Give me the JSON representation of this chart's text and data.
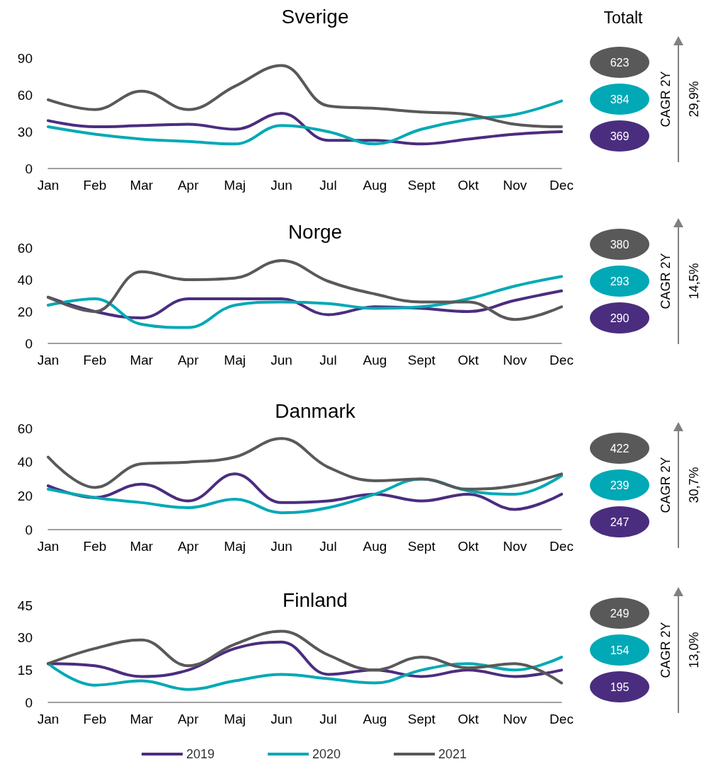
{
  "chart_data": [
    {
      "type": "line",
      "title": "Sverige",
      "categories": [
        "Jan",
        "Feb",
        "Mar",
        "Apr",
        "Maj",
        "Jun",
        "Jul",
        "Aug",
        "Sept",
        "Okt",
        "Nov",
        "Dec"
      ],
      "ylim": [
        0,
        90
      ],
      "yticks": [
        0,
        30,
        60,
        90
      ],
      "marker": "none",
      "series": [
        {
          "color": "#4b2d7f",
          "values": [
            39,
            34,
            35,
            36,
            32,
            45,
            23,
            23,
            20,
            24,
            28,
            30
          ]
        },
        {
          "color": "#00a9b5",
          "values": [
            34,
            28,
            24,
            22,
            20,
            35,
            30,
            20,
            32,
            40,
            44,
            55
          ]
        },
        {
          "color": "#595959",
          "values": [
            56,
            48,
            63,
            48,
            67,
            84,
            51,
            49,
            46,
            44,
            36,
            34
          ]
        }
      ]
    },
    {
      "type": "other",
      "title": "Totalt",
      "categories": [
        null,
        null,
        null
      ],
      "values": [
        623,
        384,
        369
      ],
      "colors": [
        "#595959",
        "#00a9b5",
        "#4b2d7f"
      ],
      "data_labels": true,
      "annotations": [
        "CAGR 2Y",
        "29,9%"
      ]
    },
    {
      "type": "line",
      "title": "Norge",
      "categories": [
        "Jan",
        "Feb",
        "Mar",
        "Apr",
        "Maj",
        "Jun",
        "Jul",
        "Aug",
        "Sept",
        "Okt",
        "Nov",
        "Dec"
      ],
      "ylim": [
        0,
        60
      ],
      "yticks": [
        0,
        20,
        40,
        60
      ],
      "marker": "none",
      "series": [
        {
          "color": "#4b2d7f",
          "values": [
            29,
            20,
            16,
            28,
            28,
            28,
            18,
            23,
            22,
            20,
            27,
            33
          ]
        },
        {
          "color": "#00a9b5",
          "values": [
            24,
            28,
            12,
            10,
            24,
            26,
            25,
            22,
            23,
            28,
            36,
            42
          ]
        },
        {
          "color": "#595959",
          "values": [
            29,
            20,
            45,
            40,
            41,
            52,
            39,
            31,
            26,
            26,
            15,
            23
          ]
        }
      ]
    },
    {
      "type": "other",
      "categories": [
        null,
        null,
        null
      ],
      "values": [
        380,
        293,
        290
      ],
      "colors": [
        "#595959",
        "#00a9b5",
        "#4b2d7f"
      ],
      "data_labels": true,
      "annotations": [
        "CAGR 2Y",
        "14,5%"
      ]
    },
    {
      "type": "line",
      "title": "Danmark",
      "categories": [
        "Jan",
        "Feb",
        "Mar",
        "Apr",
        "Maj",
        "Jun",
        "Jul",
        "Aug",
        "Sept",
        "Okt",
        "Nov",
        "Dec"
      ],
      "ylim": [
        0,
        60
      ],
      "yticks": [
        0,
        20,
        40,
        60
      ],
      "marker": "none",
      "series": [
        {
          "color": "#4b2d7f",
          "values": [
            26,
            19,
            27,
            17,
            33,
            16,
            17,
            21,
            17,
            21,
            12,
            21
          ]
        },
        {
          "color": "#00a9b5",
          "values": [
            24,
            19,
            16,
            13,
            18,
            10,
            13,
            21,
            30,
            23,
            21,
            32
          ]
        },
        {
          "color": "#595959",
          "values": [
            43,
            25,
            39,
            40,
            43,
            54,
            37,
            29,
            30,
            24,
            26,
            33
          ]
        }
      ]
    },
    {
      "type": "other",
      "categories": [
        null,
        null,
        null
      ],
      "values": [
        422,
        239,
        247
      ],
      "colors": [
        "#595959",
        "#00a9b5",
        "#4b2d7f"
      ],
      "data_labels": true,
      "annotations": [
        "CAGR 2Y",
        "30,7%"
      ]
    },
    {
      "type": "line",
      "title": "Finland",
      "categories": [
        "Jan",
        "Feb",
        "Mar",
        "Apr",
        "Maj",
        "Jun",
        "Jul",
        "Aug",
        "Sept",
        "Okt",
        "Nov",
        "Dec"
      ],
      "ylim": [
        0,
        45
      ],
      "yticks": [
        0,
        15,
        30,
        45
      ],
      "marker": "none",
      "legend": "bottom",
      "series": [
        {
          "name": "2019",
          "color": "#4b2d7f",
          "values": [
            18,
            17,
            12,
            15,
            25,
            28,
            13,
            15,
            12,
            15,
            12,
            15
          ]
        },
        {
          "name": "2020",
          "color": "#00a9b5",
          "values": [
            18,
            8,
            10,
            6,
            10,
            13,
            11,
            9,
            15,
            18,
            15,
            21
          ]
        },
        {
          "name": "2021",
          "color": "#595959",
          "values": [
            18,
            25,
            29,
            17,
            27,
            33,
            22,
            15,
            21,
            16,
            18,
            9
          ]
        }
      ]
    },
    {
      "type": "other",
      "categories": [
        null,
        null,
        null
      ],
      "values": [
        249,
        154,
        195
      ],
      "colors": [
        "#595959",
        "#00a9b5",
        "#4b2d7f"
      ],
      "data_labels": true,
      "annotations": [
        "CAGR 2Y",
        "13,0%"
      ]
    }
  ]
}
